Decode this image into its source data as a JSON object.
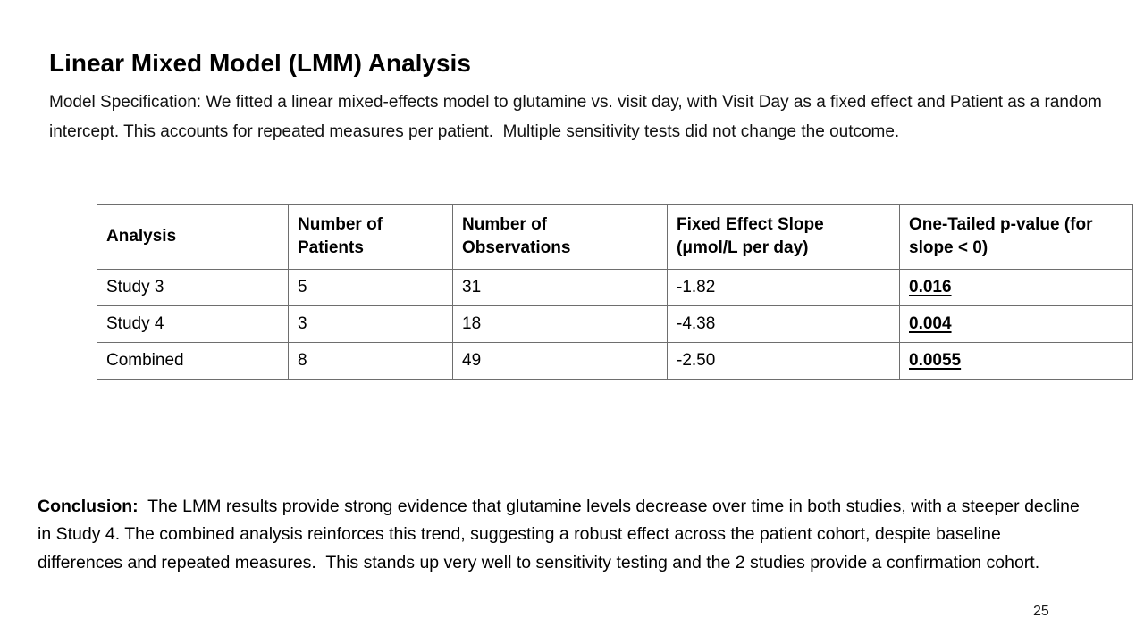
{
  "slide": {
    "title": "Linear Mixed Model (LMM) Analysis",
    "model_specification": "Model Specification: We fitted a linear mixed-effects model to glutamine vs. visit day, with Visit Day as a fixed effect and Patient as a random intercept. This accounts for repeated measures per patient.  Multiple sensitivity tests did not change the outcome.",
    "conclusion": {
      "label": "Conclusion:",
      "text": "  The LMM results provide strong evidence that glutamine levels decrease over time in both studies, with a steeper decline in Study 4. The combined analysis reinforces this trend, suggesting a robust effect across the patient cohort, despite baseline differences and repeated measures.  This stands up very well to sensitivity testing and the 2 studies provide a confirmation cohort."
    },
    "page_number": "25"
  },
  "table": {
    "headers": [
      "Analysis",
      "Number of Patients",
      "Number of Observations",
      "Fixed Effect Slope (μmol/L per day)",
      "One-Tailed p-value (for slope < 0)"
    ],
    "rows": [
      {
        "analysis": "Study 3",
        "patients": "5",
        "observations": "31",
        "slope": "-1.82",
        "p_value": "0.016"
      },
      {
        "analysis": "Study 4",
        "patients": "3",
        "observations": "18",
        "slope": "-4.38",
        "p_value": "0.004"
      },
      {
        "analysis": "Combined",
        "patients": "8",
        "observations": "49",
        "slope": "-2.50",
        "p_value": "0.0055"
      }
    ]
  },
  "colors": {
    "background": "#ffffff",
    "text": "#000000",
    "table_border": "#6e6e6e"
  }
}
